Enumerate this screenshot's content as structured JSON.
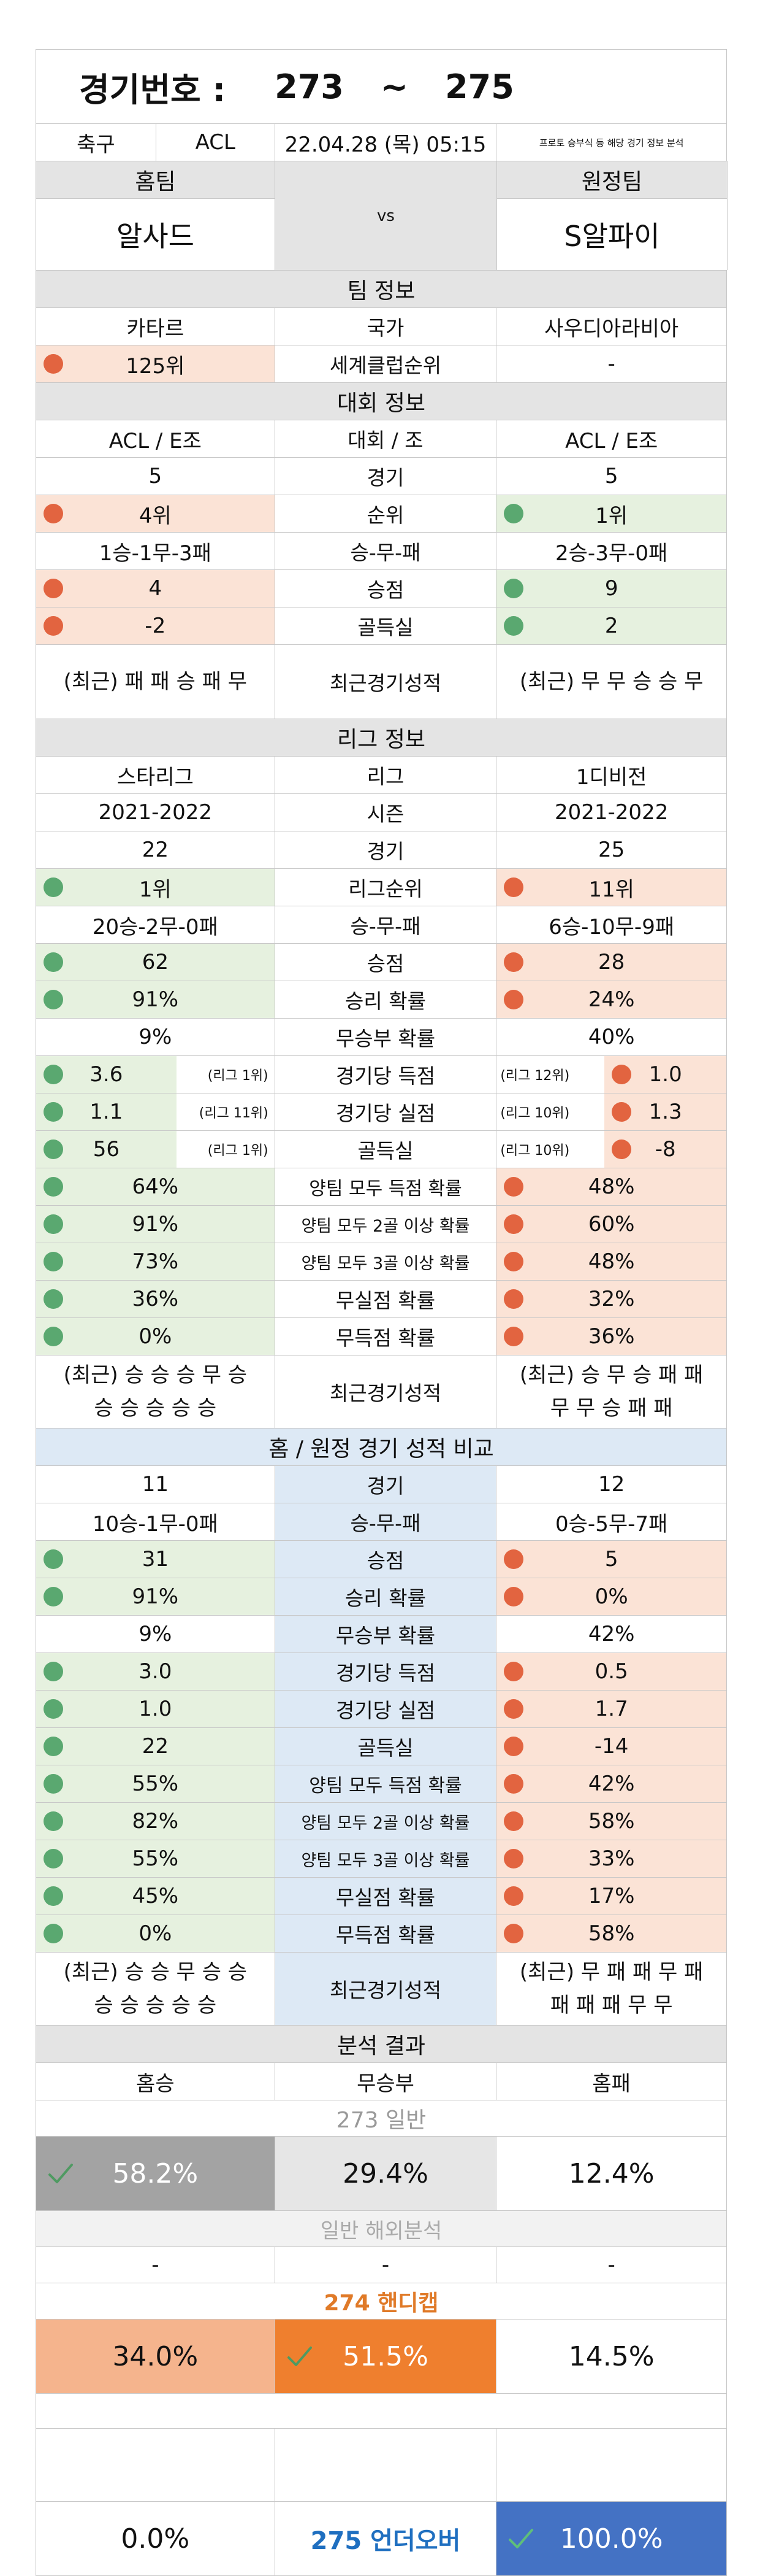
{
  "header": {
    "game_no_label": "경기번호 :",
    "game_start": "273",
    "tilde": "~",
    "game_end": "275",
    "sport": "축구",
    "league": "ACL",
    "datetime": "22.04.28 (목) 05:15",
    "note": "프로토 승부식 등 해당 경기 정보 분석",
    "home_label": "홈팀",
    "away_label": "원정팀",
    "home_team": "알사드",
    "vs": "vs",
    "away_team": "S알파이"
  },
  "team_info": {
    "title": "팀 정보",
    "country_label": "국가",
    "home_country": "카타르",
    "away_country": "사우디아라비아",
    "club_rank_label": "세계클럽순위",
    "home_club_rank": "125위",
    "away_club_rank": "-"
  },
  "tournament": {
    "title": "대회 정보",
    "group_label": "대회 / 조",
    "home_group": "ACL / E조",
    "away_group": "ACL / E조",
    "games_label": "경기",
    "home_games": "5",
    "away_games": "5",
    "rank_label": "순위",
    "home_rank": "4위",
    "away_rank": "1위",
    "wdl_label": "승-무-패",
    "home_wdl": "1승-1무-3패",
    "away_wdl": "2승-3무-0패",
    "points_label": "승점",
    "home_points": "4",
    "away_points": "9",
    "gd_label": "골득실",
    "home_gd": "-2",
    "away_gd": "2",
    "recent_label": "최근경기성적",
    "home_recent": "(최근) 패 패 승 패 무",
    "away_recent": "(최근) 무 무 승 승 무"
  },
  "league_info": {
    "title": "리그 정보",
    "league_label": "리그",
    "home_league": "스타리그",
    "away_league": "1디비전",
    "season_label": "시즌",
    "home_season": "2021-2022",
    "away_season": "2021-2022",
    "games_label": "경기",
    "home_games": "22",
    "away_games": "25",
    "rank_label": "리그순위",
    "home_rank": "1위",
    "away_rank": "11위",
    "wdl_label": "승-무-패",
    "home_wdl": "20승-2무-0패",
    "away_wdl": "6승-10무-9패",
    "points_label": "승점",
    "home_points": "62",
    "away_points": "28",
    "winp_label": "승리 확률",
    "home_winp": "91%",
    "away_winp": "24%",
    "drawp_label": "무승부 확률",
    "home_drawp": "9%",
    "away_drawp": "40%",
    "gf_label": "경기당 득점",
    "home_gf": "3.6",
    "home_gf_rank": "(리그 1위)",
    "away_gf": "1.0",
    "away_gf_rank": "(리그 12위)",
    "ga_label": "경기당 실점",
    "home_ga": "1.1",
    "home_ga_rank": "(리그 11위)",
    "away_ga": "1.3",
    "away_ga_rank": "(리그 10위)",
    "gd_label": "골득실",
    "home_gd": "56",
    "home_gd_rank": "(리그 1위)",
    "away_gd": "-8",
    "away_gd_rank": "(리그 10위)",
    "btts_label": "양팀 모두 득점 확률",
    "home_btts": "64%",
    "away_btts": "48%",
    "b2_label": "양팀 모두 2골 이상 확률",
    "home_b2": "91%",
    "away_b2": "60%",
    "b3_label": "양팀 모두 3골 이상 확률",
    "home_b3": "73%",
    "away_b3": "48%",
    "cs_label": "무실점 확률",
    "home_cs": "36%",
    "away_cs": "32%",
    "fts_label": "무득점 확률",
    "home_fts": "0%",
    "away_fts": "36%",
    "recent_label": "최근경기성적",
    "home_recent_1": "(최근) 승 승 승 무 승",
    "home_recent_2": "승 승 승 승 승",
    "away_recent_1": "(최근) 승 무 승 패 패",
    "away_recent_2": "무 무 승 패 패"
  },
  "homeaway": {
    "title": "홈 / 원정 경기 성적 비교",
    "games_label": "경기",
    "home_games": "11",
    "away_games": "12",
    "wdl_label": "승-무-패",
    "home_wdl": "10승-1무-0패",
    "away_wdl": "0승-5무-7패",
    "points_label": "승점",
    "home_points": "31",
    "away_points": "5",
    "winp_label": "승리 확률",
    "home_winp": "91%",
    "away_winp": "0%",
    "drawp_label": "무승부 확률",
    "home_drawp": "9%",
    "away_drawp": "42%",
    "gf_label": "경기당 득점",
    "home_gf": "3.0",
    "away_gf": "0.5",
    "ga_label": "경기당 실점",
    "home_ga": "1.0",
    "away_ga": "1.7",
    "gd_label": "골득실",
    "home_gd": "22",
    "away_gd": "-14",
    "btts_label": "양팀 모두 득점 확률",
    "home_btts": "55%",
    "away_btts": "42%",
    "b2_label": "양팀 모두 2골 이상 확률",
    "home_b2": "82%",
    "away_b2": "58%",
    "b3_label": "양팀 모두 3골 이상 확률",
    "home_b3": "55%",
    "away_b3": "33%",
    "cs_label": "무실점 확률",
    "home_cs": "45%",
    "away_cs": "17%",
    "fts_label": "무득점 확률",
    "home_fts": "0%",
    "away_fts": "58%",
    "recent_label": "최근경기성적",
    "home_recent_1": "(최근) 승 승 무 승 승",
    "home_recent_2": "승 승 승 승 승",
    "away_recent_1": "(최근) 무 패 패 무 패",
    "away_recent_2": "패 패 패 무 무"
  },
  "analysis": {
    "title": "분석 결과",
    "home_win_label": "홈승",
    "draw_label": "무승부",
    "home_loss_label": "홈패",
    "general_header": "273 일반",
    "general_home": "58.2%",
    "general_draw": "29.4%",
    "general_loss": "12.4%",
    "overseas_label": "일반 해외분석",
    "overseas_home": "-",
    "overseas_draw": "-",
    "overseas_loss": "-",
    "handicap_header": "274 핸디캡",
    "handicap_home": "34.0%",
    "handicap_draw": "51.5%",
    "handicap_loss": "14.5%",
    "under_left": "0.0%",
    "under_label": "275 언더오버",
    "under_right": "100.0%"
  },
  "colors": {
    "highlight_red": "#fbe3d6",
    "highlight_green": "#e6f1df",
    "dot_red": "#e26440",
    "dot_green": "#5aa870",
    "general_pick": "#a3a3a3",
    "handicap_home": "#f5b48d",
    "handicap_pick": "#ef7f2e",
    "under_pick": "#4472c4"
  }
}
